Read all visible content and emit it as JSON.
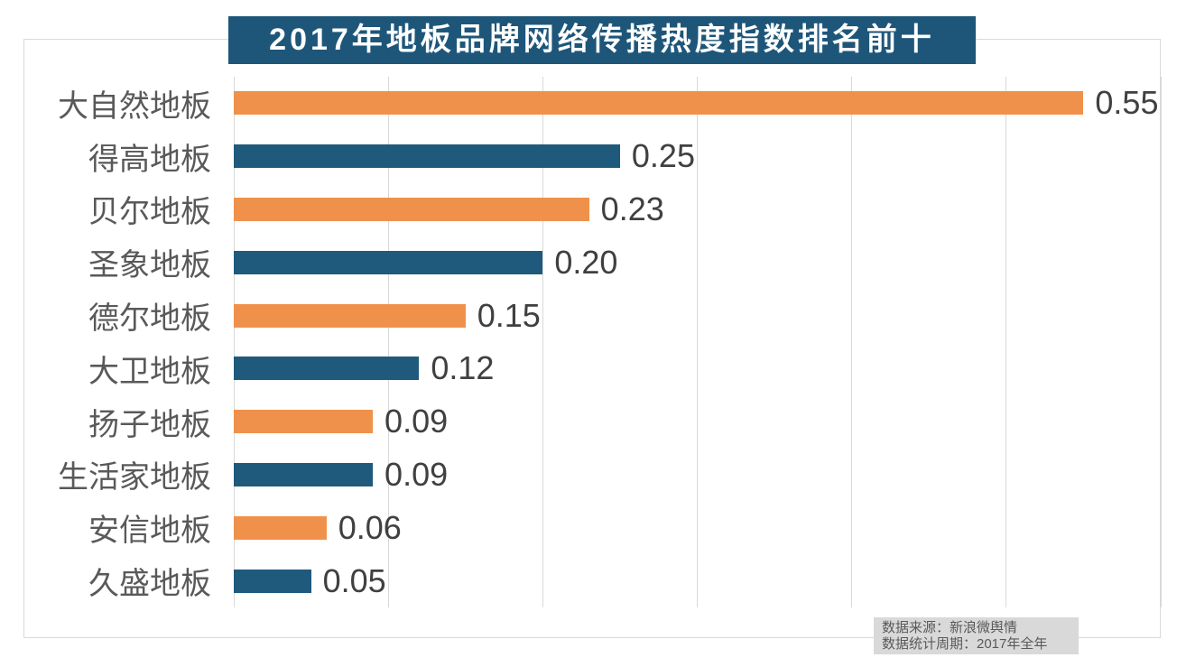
{
  "title": "2017年地板品牌网络传播热度指数排名前十",
  "chart_data": {
    "type": "bar",
    "orientation": "horizontal",
    "title": "2017年地板品牌网络传播热度指数排名前十",
    "categories": [
      "大自然地板",
      "得高地板",
      "贝尔地板",
      "圣象地板",
      "德尔地板",
      "大卫地板",
      "扬子地板",
      "生活家地板",
      "安信地板",
      "久盛地板"
    ],
    "values": [
      0.55,
      0.25,
      0.23,
      0.2,
      0.15,
      0.12,
      0.09,
      0.09,
      0.06,
      0.05
    ],
    "value_labels": [
      "0.55",
      "0.25",
      "0.23",
      "0.20",
      "0.15",
      "0.12",
      "0.09",
      "0.09",
      "0.06",
      "0.05"
    ],
    "xlabel": "",
    "ylabel": "",
    "xlim": [
      0,
      0.6
    ],
    "gridline_step": 0.1,
    "gridline_count": 7,
    "grid": "vertical-only",
    "legend": "none",
    "bar_colors_alternating": [
      "#F0914B",
      "#1F5A7C"
    ]
  },
  "source": {
    "line1": "数据来源：新浪微舆情",
    "line2": "数据统计周期：2017年全年"
  },
  "colors": {
    "title_background": "#1E567A",
    "title_text": "#ffffff",
    "bar_orange": "#F0914B",
    "bar_blue": "#1F5A7C",
    "gridline": "#d9d9d9",
    "frame_border": "#d9d9d9",
    "category_label_text": "#595959",
    "value_label_text": "#404040",
    "source_background": "#d9d9d9",
    "source_text": "#595959"
  }
}
